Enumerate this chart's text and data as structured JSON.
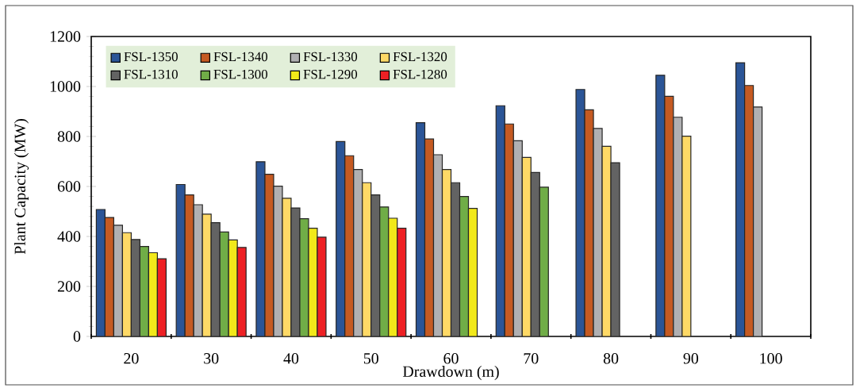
{
  "chart_data": {
    "type": "bar",
    "xlabel": "Drawdown (m)",
    "ylabel": "Plant Capacity (MW)",
    "categories": [
      "20",
      "30",
      "40",
      "50",
      "60",
      "70",
      "80",
      "90",
      "100"
    ],
    "ylim": [
      0,
      1200
    ],
    "yticks": [
      0,
      200,
      400,
      600,
      800,
      1000,
      1200
    ],
    "grid": false,
    "legend": "top left",
    "series": [
      {
        "name": "FSL-1350",
        "color": "#2b5597",
        "values": [
          508,
          608,
          699,
          780,
          855,
          923,
          988,
          1045,
          1095
        ]
      },
      {
        "name": "FSL-1340",
        "color": "#c55a22",
        "values": [
          476,
          566,
          649,
          723,
          790,
          850,
          907,
          961,
          1004
        ]
      },
      {
        "name": "FSL-1330",
        "color": "#b0b0b2",
        "values": [
          445,
          527,
          601,
          668,
          727,
          783,
          832,
          877,
          918
        ]
      },
      {
        "name": "FSL-1320",
        "color": "#fed966",
        "values": [
          415,
          489,
          553,
          615,
          668,
          716,
          761,
          801,
          null
        ]
      },
      {
        "name": "FSL-1310",
        "color": "#636363",
        "values": [
          388,
          455,
          514,
          566,
          615,
          656,
          695,
          null,
          null
        ]
      },
      {
        "name": "FSL-1300",
        "color": "#70ad47",
        "values": [
          360,
          418,
          471,
          518,
          560,
          597,
          null,
          null,
          null
        ]
      },
      {
        "name": "FSL-1290",
        "color": "#f2e91a",
        "values": [
          335,
          386,
          433,
          473,
          512,
          null,
          null,
          null,
          null
        ]
      },
      {
        "name": "FSL-1280",
        "color": "#ee2024",
        "values": [
          311,
          356,
          397,
          433,
          null,
          null,
          null,
          null,
          null
        ]
      }
    ]
  }
}
